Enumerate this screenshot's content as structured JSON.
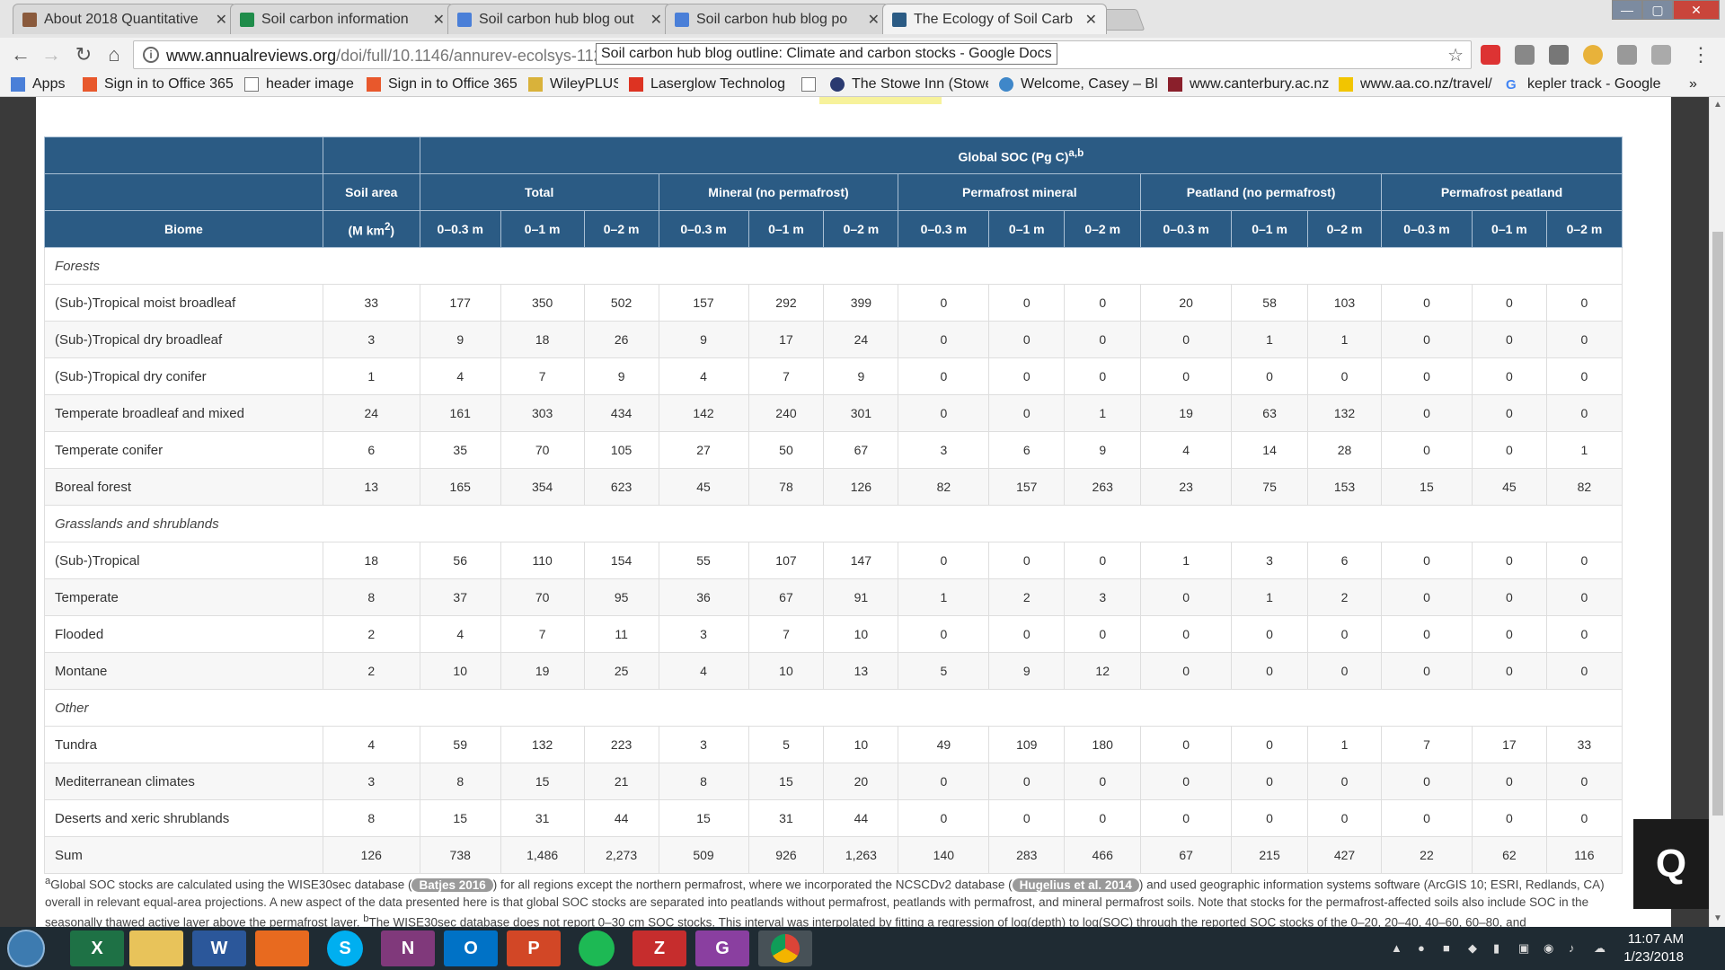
{
  "tabs": [
    {
      "title": "About 2018 Quantitative",
      "active": false
    },
    {
      "title": "Soil carbon information",
      "active": false
    },
    {
      "title": "Soil carbon hub blog out",
      "active": false
    },
    {
      "title": "Soil carbon hub blog po",
      "active": false
    },
    {
      "title": "The Ecology of Soil Carb",
      "active": true
    }
  ],
  "toolbar": {
    "url_host": "www.annualreviews.org",
    "url_path": "/doi/full/10.1146/annurev-ecolsys-112",
    "tooltip": "Soil carbon hub blog outline: Climate and carbon stocks - Google Docs"
  },
  "bookmarks": [
    "Apps",
    "Sign in to Office 365",
    "header image",
    "Sign in to Office 365",
    "WileyPLUS",
    "Laserglow Technolog",
    "",
    "The Stowe Inn (Stowe",
    "Welcome, Casey – Bl",
    "www.canterbury.ac.nz",
    "www.aa.co.nz/travel/",
    "kepler track - Google"
  ],
  "table": {
    "header_global": "Global SOC (Pg C)",
    "header_global_sup": "a,b",
    "header_soil_area": "Soil area",
    "header_soil_area_unit": "(M km",
    "header_soil_area_unit_sup": "2",
    "header_soil_area_unit_end": ")",
    "header_biome": "Biome",
    "groups": [
      "Total",
      "Mineral (no permafrost)",
      "Permafrost mineral",
      "Peatland (no permafrost)",
      "Permafrost peatland"
    ],
    "depths": [
      "0–0.3 m",
      "0–1 m",
      "0–2 m"
    ],
    "rows": [
      {
        "type": "group",
        "label": "Forests"
      },
      {
        "type": "data",
        "biome": "(Sub-)Tropical moist broadleaf",
        "values": [
          "33",
          "177",
          "350",
          "502",
          "157",
          "292",
          "399",
          "0",
          "0",
          "0",
          "20",
          "58",
          "103",
          "0",
          "0",
          "0"
        ]
      },
      {
        "type": "data",
        "biome": "(Sub-)Tropical dry broadleaf",
        "values": [
          "3",
          "9",
          "18",
          "26",
          "9",
          "17",
          "24",
          "0",
          "0",
          "0",
          "0",
          "1",
          "1",
          "0",
          "0",
          "0"
        ]
      },
      {
        "type": "data",
        "biome": "(Sub-)Tropical dry conifer",
        "values": [
          "1",
          "4",
          "7",
          "9",
          "4",
          "7",
          "9",
          "0",
          "0",
          "0",
          "0",
          "0",
          "0",
          "0",
          "0",
          "0"
        ]
      },
      {
        "type": "data",
        "biome": "Temperate broadleaf and mixed",
        "values": [
          "24",
          "161",
          "303",
          "434",
          "142",
          "240",
          "301",
          "0",
          "0",
          "1",
          "19",
          "63",
          "132",
          "0",
          "0",
          "0"
        ]
      },
      {
        "type": "data",
        "biome": "Temperate conifer",
        "values": [
          "6",
          "35",
          "70",
          "105",
          "27",
          "50",
          "67",
          "3",
          "6",
          "9",
          "4",
          "14",
          "28",
          "0",
          "0",
          "1"
        ]
      },
      {
        "type": "data",
        "biome": "Boreal forest",
        "values": [
          "13",
          "165",
          "354",
          "623",
          "45",
          "78",
          "126",
          "82",
          "157",
          "263",
          "23",
          "75",
          "153",
          "15",
          "45",
          "82"
        ]
      },
      {
        "type": "group",
        "label": "Grasslands and shrublands"
      },
      {
        "type": "data",
        "biome": "(Sub-)Tropical",
        "values": [
          "18",
          "56",
          "110",
          "154",
          "55",
          "107",
          "147",
          "0",
          "0",
          "0",
          "1",
          "3",
          "6",
          "0",
          "0",
          "0"
        ]
      },
      {
        "type": "data",
        "biome": "Temperate",
        "values": [
          "8",
          "37",
          "70",
          "95",
          "36",
          "67",
          "91",
          "1",
          "2",
          "3",
          "0",
          "1",
          "2",
          "0",
          "0",
          "0"
        ]
      },
      {
        "type": "data",
        "biome": "Flooded",
        "values": [
          "2",
          "4",
          "7",
          "11",
          "3",
          "7",
          "10",
          "0",
          "0",
          "0",
          "0",
          "0",
          "0",
          "0",
          "0",
          "0"
        ]
      },
      {
        "type": "data",
        "biome": "Montane",
        "values": [
          "2",
          "10",
          "19",
          "25",
          "4",
          "10",
          "13",
          "5",
          "9",
          "12",
          "0",
          "0",
          "0",
          "0",
          "0",
          "0"
        ]
      },
      {
        "type": "group",
        "label": "Other"
      },
      {
        "type": "data",
        "biome": "Tundra",
        "values": [
          "4",
          "59",
          "132",
          "223",
          "3",
          "5",
          "10",
          "49",
          "109",
          "180",
          "0",
          "0",
          "1",
          "7",
          "17",
          "33"
        ]
      },
      {
        "type": "data",
        "biome": "Mediterranean climates",
        "values": [
          "3",
          "8",
          "15",
          "21",
          "8",
          "15",
          "20",
          "0",
          "0",
          "0",
          "0",
          "0",
          "0",
          "0",
          "0",
          "0"
        ]
      },
      {
        "type": "data",
        "biome": "Deserts and xeric shrublands",
        "values": [
          "8",
          "15",
          "31",
          "44",
          "15",
          "31",
          "44",
          "0",
          "0",
          "0",
          "0",
          "0",
          "0",
          "0",
          "0",
          "0"
        ]
      },
      {
        "type": "data",
        "biome": "Sum",
        "values": [
          "126",
          "738",
          "1,486",
          "2,273",
          "509",
          "926",
          "1,263",
          "140",
          "283",
          "466",
          "67",
          "215",
          "427",
          "22",
          "62",
          "116"
        ]
      }
    ]
  },
  "footnote": {
    "sup_a": "a",
    "part1": "Global SOC stocks are calculated using the WISE30sec database (",
    "cite1": "Batjes 2016",
    "part2": ") for all regions except the northern permafrost, where we incorporated the NCSCDv2 database (",
    "cite2": "Hugelius et al. 2014",
    "part3": ") and used geographic information systems software (ArcGIS 10; ESRI, Redlands, CA) overall in relevant equal-area projections. A new aspect of the data presented here is that global SOC stocks are separated into peatlands without permafrost, peatlands with permafrost, and mineral permafrost soils. Note that stocks for the permafrost-affected soils also include SOC in the seasonally thawed active layer above the permafrost layer. ",
    "sup_b": "b",
    "part4": "The WISE30sec database does not report 0–30 cm SOC stocks. This interval was interpolated by fitting a regression of log(depth) to log(SOC) through the reported SOC stocks of the 0–20, 20–40, 40–60, 60–80, and"
  },
  "widget": {
    "q_label": "Q"
  },
  "taskbar": {
    "apps": [
      "X",
      "",
      "W",
      "",
      "S",
      "N",
      "O",
      "P",
      "",
      "Z",
      "G",
      ""
    ],
    "time": "11:07 AM",
    "date": "1/23/2018"
  },
  "colors": {
    "table_header": "#2b5b84",
    "taskbar": "#1f2b33"
  }
}
